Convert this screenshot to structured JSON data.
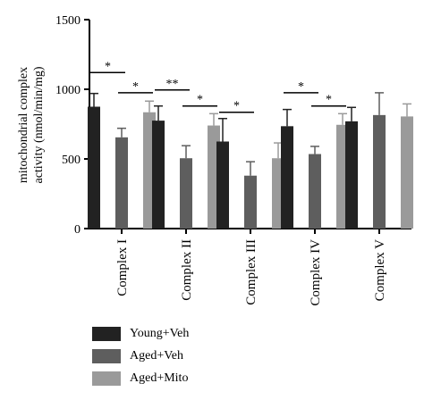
{
  "chart_data": {
    "type": "bar",
    "ylabel_lines": [
      "mitochondrial complex",
      "activity (nmol/min/mg)"
    ],
    "ylim": [
      0,
      1500
    ],
    "yticks": [
      0,
      500,
      1000,
      1500
    ],
    "categories": [
      "Complex I",
      "Complex II",
      "Complex III",
      "Complex IV",
      "Complex V"
    ],
    "series": [
      {
        "name": "Young+Veh",
        "color": "#222222",
        "values": [
          875,
          775,
          625,
          735,
          770
        ],
        "errors": [
          95,
          105,
          165,
          120,
          100
        ]
      },
      {
        "name": "Aged+Veh",
        "color": "#5e5e5e",
        "values": [
          655,
          505,
          380,
          535,
          815
        ],
        "errors": [
          65,
          90,
          100,
          55,
          160
        ]
      },
      {
        "name": "Aged+Mito",
        "color": "#9a9a9a",
        "values": [
          835,
          740,
          505,
          745,
          805
        ],
        "errors": [
          80,
          85,
          110,
          80,
          90
        ]
      }
    ],
    "significance": [
      {
        "category": 0,
        "from": 0,
        "to": 1,
        "label": "*",
        "level": 1120
      },
      {
        "category": 0,
        "from": 1,
        "to": 2,
        "label": "*",
        "level": 975
      },
      {
        "category": 1,
        "from": 0,
        "to": 1,
        "label": "**",
        "level": 995
      },
      {
        "category": 1,
        "from": 1,
        "to": 2,
        "label": "*",
        "level": 880
      },
      {
        "category": 2,
        "from": 0,
        "to": 1,
        "label": "*",
        "level": 835
      },
      {
        "category": 3,
        "from": 0,
        "to": 1,
        "label": "*",
        "level": 975
      },
      {
        "category": 3,
        "from": 1,
        "to": 2,
        "label": "*",
        "level": 880
      }
    ],
    "legend_position": "bottom-left",
    "grid": false
  }
}
